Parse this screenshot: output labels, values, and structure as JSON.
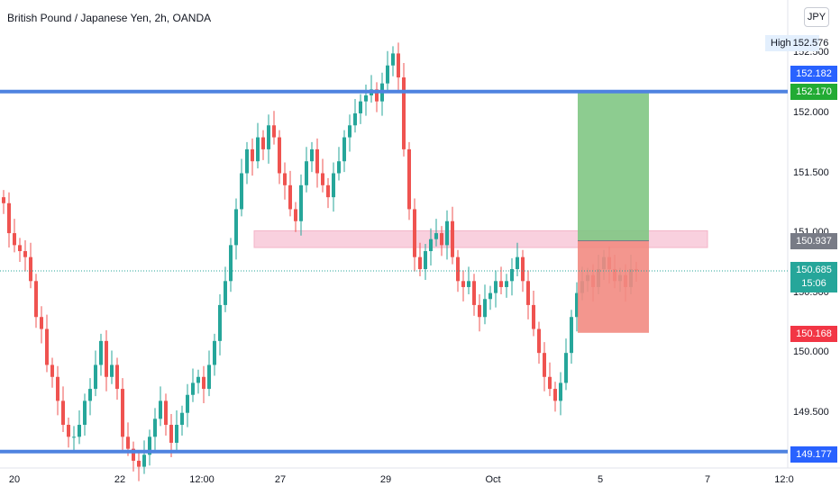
{
  "header": {
    "title": "British Pound / Japanese Yen, 2h, OANDA",
    "currency_button": "JPY"
  },
  "price_axis": {
    "ticks": [
      "152.500",
      "152.000",
      "151.500",
      "151.000",
      "150.500",
      "150.000",
      "149.500"
    ],
    "high_label": "High",
    "high_value": "152.576",
    "resistance_price": "152.182",
    "take_profit_price": "152.170",
    "zone_price": "150.937",
    "last_price": "150.685",
    "countdown": "15:06",
    "stop_loss_price": "150.168",
    "support_price": "149.177"
  },
  "time_axis": {
    "labels": [
      "20",
      "22",
      "12:00",
      "27",
      "29",
      "Oct",
      "5",
      "7",
      "12:0"
    ]
  },
  "colors": {
    "up": "#26a69a",
    "down": "#ef5350",
    "line": "#4f83e0",
    "profit": "#81c784",
    "loss": "#f28b82",
    "zone": "#f8c8d8"
  },
  "chart_data": {
    "type": "candlestick",
    "title": "British Pound / Japanese Yen, 2h, OANDA",
    "y_range": [
      149.0,
      152.65
    ],
    "levels": {
      "resistance": 152.182,
      "support": 149.177,
      "zone_low": 150.88,
      "zone_high": 151.02,
      "position_entry": 150.937,
      "take_profit": 152.17,
      "stop_loss": 150.168,
      "last": 150.685
    },
    "closes": [
      151.25,
      151.0,
      150.9,
      150.85,
      150.8,
      150.6,
      150.3,
      150.2,
      149.9,
      149.8,
      149.6,
      149.4,
      149.3,
      149.3,
      149.4,
      149.6,
      149.7,
      149.9,
      150.1,
      149.8,
      149.9,
      149.7,
      149.3,
      149.2,
      149.1,
      149.05,
      149.15,
      149.3,
      149.45,
      149.6,
      149.4,
      149.25,
      149.4,
      149.5,
      149.65,
      149.75,
      149.8,
      149.7,
      149.9,
      150.1,
      150.4,
      150.6,
      150.9,
      151.2,
      151.5,
      151.7,
      151.6,
      151.8,
      151.7,
      151.9,
      151.8,
      151.5,
      151.4,
      151.2,
      151.1,
      151.4,
      151.6,
      151.7,
      151.5,
      151.4,
      151.3,
      151.5,
      151.6,
      151.8,
      151.9,
      152.0,
      152.1,
      152.15,
      152.2,
      152.1,
      152.25,
      152.4,
      152.5,
      152.3,
      151.7,
      151.2,
      150.8,
      150.7,
      150.85,
      150.95,
      151.0,
      150.9,
      151.1,
      150.8,
      150.6,
      150.55,
      150.6,
      150.4,
      150.3,
      150.45,
      150.5,
      150.6,
      150.55,
      150.6,
      150.7,
      150.8,
      150.6,
      150.4,
      150.2,
      150.0,
      149.8,
      149.7,
      149.6,
      149.75,
      150.0,
      150.3,
      150.5,
      150.6,
      150.65,
      150.55,
      150.7,
      150.8,
      150.7,
      150.6,
      150.65,
      150.55,
      150.7,
      150.685
    ]
  }
}
